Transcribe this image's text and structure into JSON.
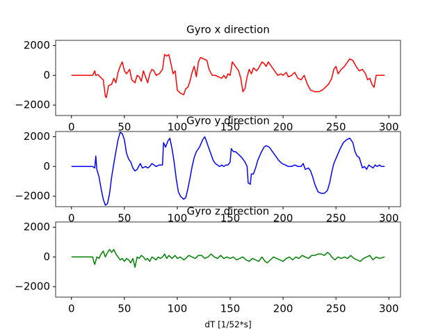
{
  "chart_data": [
    {
      "type": "line",
      "title": "Gyro x direction",
      "color": "#ff0000",
      "x": [
        0,
        20,
        22,
        23,
        25,
        27,
        30,
        32,
        33,
        35,
        38,
        40,
        42,
        44,
        46,
        48,
        50,
        52,
        55,
        57,
        60,
        62,
        64,
        66,
        68,
        70,
        72,
        74,
        76,
        78,
        80,
        83,
        86,
        88,
        90,
        92,
        94,
        96,
        98,
        100,
        103,
        106,
        108,
        110,
        112,
        114,
        116,
        118,
        120,
        122,
        125,
        128,
        130,
        133,
        136,
        139,
        142,
        144,
        146,
        148,
        150,
        152,
        155,
        158,
        160,
        162,
        164,
        166,
        168,
        170,
        172,
        175,
        177,
        180,
        182,
        184,
        186,
        188,
        190,
        192,
        195,
        198,
        200,
        203,
        205,
        208,
        211,
        214,
        217,
        220,
        223,
        226,
        230,
        234,
        237,
        240,
        243,
        246,
        248,
        250,
        252,
        255,
        258,
        260,
        263,
        266,
        269,
        272,
        275,
        278,
        280,
        282,
        284,
        286,
        288,
        290,
        293,
        296
      ],
      "values": [
        0,
        0,
        300,
        0,
        50,
        -100,
        -300,
        -1400,
        -1500,
        -700,
        -600,
        -200,
        -500,
        200,
        600,
        900,
        300,
        100,
        400,
        -300,
        -500,
        0,
        -100,
        -400,
        300,
        -100,
        -500,
        100,
        400,
        300,
        0,
        100,
        400,
        1400,
        1300,
        1400,
        800,
        100,
        300,
        -1000,
        -1200,
        -1300,
        -900,
        -800,
        -400,
        200,
        600,
        -100,
        900,
        1200,
        1100,
        1000,
        400,
        0,
        0,
        -100,
        -200,
        0,
        -200,
        100,
        0,
        900,
        600,
        300,
        -200,
        -1100,
        -900,
        -100,
        400,
        100,
        500,
        300,
        500,
        900,
        800,
        600,
        900,
        700,
        500,
        300,
        0,
        100,
        0,
        200,
        -100,
        0,
        200,
        -200,
        -300,
        0,
        -600,
        -1000,
        -1100,
        -1100,
        -1000,
        -800,
        -600,
        -200,
        400,
        600,
        100,
        400,
        600,
        800,
        1100,
        1000,
        600,
        300,
        400,
        100,
        -300,
        -200,
        -600,
        -800,
        0,
        0,
        0,
        0
      ],
      "xlim": [
        -15,
        311
      ],
      "xticks": [
        0,
        50,
        100,
        150,
        200,
        250,
        300
      ],
      "ylim": [
        -2700,
        2350
      ],
      "yticks": [
        {
          "value": -2000,
          "label": "−2000"
        },
        0,
        2000
      ]
    },
    {
      "type": "line",
      "title": "Gyro y direction",
      "color": "#0000ff",
      "x": [
        0,
        20,
        22,
        23,
        24,
        26,
        28,
        30,
        32,
        34,
        36,
        38,
        40,
        42,
        44,
        46,
        48,
        50,
        52,
        54,
        56,
        58,
        60,
        62,
        65,
        67,
        70,
        72,
        74,
        76,
        78,
        80,
        83,
        86,
        87,
        89,
        91,
        93,
        95,
        97,
        99,
        101,
        103,
        106,
        108,
        110,
        112,
        114,
        116,
        118,
        121,
        124,
        126,
        128,
        130,
        132,
        134,
        136,
        138,
        140,
        142,
        144,
        146,
        148,
        150,
        151,
        153,
        155,
        158,
        161,
        164,
        166,
        167,
        169,
        170,
        172,
        174,
        176,
        179,
        182,
        184,
        187,
        190,
        193,
        196,
        199,
        202,
        205,
        208,
        211,
        214,
        217,
        219,
        221,
        224,
        226,
        228,
        230,
        233,
        236,
        239,
        242,
        244,
        246,
        248,
        251,
        254,
        257,
        260,
        263,
        266,
        268,
        270,
        272,
        275,
        277,
        279,
        281,
        283,
        285,
        287,
        289,
        291,
        293,
        296
      ],
      "values": [
        0,
        0,
        -100,
        700,
        -200,
        -700,
        -1500,
        -2200,
        -2600,
        -2500,
        -1800,
        -700,
        200,
        1000,
        1800,
        2300,
        2200,
        1800,
        900,
        500,
        300,
        -100,
        -300,
        -200,
        200,
        -100,
        0,
        -100,
        0,
        200,
        100,
        0,
        100,
        100,
        1600,
        1300,
        1700,
        1900,
        1200,
        300,
        -800,
        -1700,
        -2000,
        -2200,
        -2100,
        -1500,
        -800,
        0,
        600,
        1000,
        1300,
        1800,
        2000,
        1600,
        1200,
        800,
        400,
        200,
        100,
        0,
        100,
        0,
        100,
        100,
        300,
        1200,
        1000,
        1000,
        800,
        600,
        300,
        0,
        -1100,
        -1200,
        -500,
        -500,
        -100,
        400,
        900,
        1300,
        1400,
        1300,
        1000,
        700,
        400,
        200,
        100,
        0,
        0,
        100,
        0,
        0,
        200,
        -200,
        -100,
        -300,
        -700,
        -1200,
        -1700,
        -1800,
        -1800,
        -1600,
        -1100,
        -400,
        200,
        700,
        1200,
        1600,
        1800,
        1900,
        1600,
        1000,
        700,
        600,
        -100,
        0,
        -200,
        100,
        0,
        -100,
        100,
        0,
        100,
        0,
        0
      ],
      "xlim": [
        -15,
        311
      ],
      "xticks": [
        0,
        50,
        100,
        150,
        200,
        250,
        300
      ],
      "ylim": [
        -2700,
        2350
      ],
      "yticks": [
        {
          "value": -2000,
          "label": "−2000"
        },
        0,
        2000
      ]
    },
    {
      "type": "line",
      "title": "Gyro z direction",
      "color": "#008000",
      "xlabel": "dT [1/52*s]",
      "x": [
        0,
        19,
        20,
        21,
        22,
        24,
        26,
        28,
        30,
        32,
        34,
        36,
        38,
        40,
        42,
        44,
        46,
        48,
        50,
        52,
        54,
        56,
        58,
        60,
        62,
        64,
        66,
        68,
        70,
        72,
        74,
        76,
        78,
        80,
        82,
        84,
        86,
        88,
        90,
        92,
        95,
        98,
        100,
        103,
        106,
        108,
        111,
        114,
        117,
        120,
        123,
        126,
        129,
        132,
        135,
        138,
        141,
        144,
        147,
        150,
        153,
        156,
        159,
        162,
        165,
        168,
        171,
        174,
        177,
        180,
        183,
        185,
        188,
        191,
        194,
        197,
        200,
        203,
        206,
        209,
        212,
        215,
        218,
        221,
        224,
        227,
        230,
        233,
        236,
        239,
        242,
        244,
        246,
        249,
        252,
        255,
        258,
        261,
        264,
        267,
        270,
        273,
        276,
        279,
        282,
        285,
        288,
        291,
        296
      ],
      "values": [
        0,
        0,
        0,
        -300,
        -500,
        0,
        -100,
        200,
        400,
        0,
        300,
        500,
        300,
        500,
        200,
        0,
        -200,
        -100,
        -300,
        -100,
        -200,
        -400,
        -100,
        -700,
        0,
        -100,
        100,
        0,
        -200,
        -100,
        -300,
        0,
        -100,
        -200,
        0,
        -100,
        0,
        200,
        -100,
        100,
        -100,
        100,
        -100,
        0,
        -200,
        -100,
        100,
        0,
        -100,
        100,
        100,
        -100,
        0,
        200,
        0,
        -100,
        100,
        -100,
        0,
        -100,
        0,
        -200,
        -100,
        0,
        -200,
        -300,
        -100,
        -200,
        -300,
        0,
        -300,
        -400,
        -200,
        0,
        -100,
        -200,
        -300,
        -100,
        0,
        -200,
        0,
        -100,
        100,
        0,
        -100,
        100,
        100,
        200,
        200,
        100,
        300,
        200,
        0,
        -200,
        0,
        -100,
        0,
        -100,
        100,
        -100,
        -200,
        -300,
        -100,
        0,
        100,
        -200,
        0,
        -100,
        0
      ],
      "xlim": [
        -15,
        311
      ],
      "xticks": [
        0,
        50,
        100,
        150,
        200,
        250,
        300
      ],
      "ylim": [
        -2700,
        2350
      ],
      "yticks": [
        {
          "value": -2000,
          "label": "−2000"
        },
        0,
        2000
      ]
    }
  ]
}
